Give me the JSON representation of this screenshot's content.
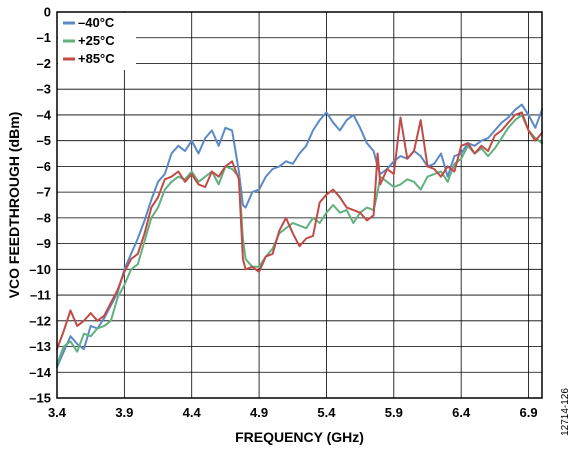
{
  "chart_data": {
    "type": "line",
    "xlabel": "FREQUENCY (GHz)",
    "ylabel": "VCO FEEDTHROUGH (dBm)",
    "xlim": [
      3.4,
      7.0
    ],
    "ylim": [
      -15,
      0
    ],
    "xticks": [
      3.4,
      3.9,
      4.4,
      4.9,
      5.4,
      5.9,
      6.4,
      6.9
    ],
    "xtick_labels": [
      "3.4",
      "3.9",
      "4.4",
      "4.9",
      "5.4",
      "5.9",
      "6.4",
      "6.9"
    ],
    "yticks": [
      0,
      -1,
      -2,
      -3,
      -4,
      -5,
      -6,
      -7,
      -8,
      -9,
      -10,
      -11,
      -12,
      -13,
      -14,
      -15
    ],
    "ytick_labels": [
      "0",
      "–1",
      "–2",
      "–3",
      "–4",
      "–5",
      "–6",
      "–7",
      "–8",
      "–9",
      "–10",
      "–11",
      "–12",
      "–13",
      "–14",
      "–15"
    ],
    "grid": true,
    "legend_position": "top-left",
    "series": [
      {
        "name": "–40°C",
        "color": "#5b8ac6",
        "x": [
          3.4,
          3.45,
          3.5,
          3.55,
          3.6,
          3.65,
          3.7,
          3.75,
          3.8,
          3.85,
          3.9,
          3.95,
          4.0,
          4.05,
          4.1,
          4.15,
          4.2,
          4.25,
          4.3,
          4.35,
          4.4,
          4.45,
          4.5,
          4.55,
          4.6,
          4.65,
          4.7,
          4.75,
          4.78,
          4.8,
          4.85,
          4.9,
          4.95,
          5.0,
          5.05,
          5.1,
          5.15,
          5.2,
          5.25,
          5.3,
          5.35,
          5.4,
          5.45,
          5.5,
          5.55,
          5.6,
          5.65,
          5.7,
          5.75,
          5.78,
          5.8,
          5.85,
          5.9,
          5.95,
          6.0,
          6.05,
          6.1,
          6.15,
          6.2,
          6.25,
          6.3,
          6.35,
          6.4,
          6.45,
          6.5,
          6.55,
          6.6,
          6.65,
          6.7,
          6.75,
          6.8,
          6.85,
          6.9,
          6.95,
          7.0
        ],
        "y": [
          -13.8,
          -13.2,
          -12.6,
          -12.9,
          -13.1,
          -12.2,
          -12.3,
          -11.9,
          -11.4,
          -10.9,
          -10.0,
          -9.4,
          -8.8,
          -8.1,
          -7.3,
          -6.6,
          -6.3,
          -5.5,
          -5.2,
          -5.4,
          -5.0,
          -5.5,
          -4.9,
          -4.6,
          -5.2,
          -4.5,
          -4.6,
          -6.2,
          -7.5,
          -7.6,
          -7.0,
          -6.9,
          -6.4,
          -6.1,
          -6.0,
          -5.8,
          -5.9,
          -5.5,
          -5.2,
          -4.6,
          -4.2,
          -3.9,
          -4.3,
          -4.6,
          -4.2,
          -4.0,
          -4.5,
          -5.1,
          -5.4,
          -6.0,
          -6.3,
          -6.1,
          -5.8,
          -5.6,
          -5.7,
          -5.4,
          -5.6,
          -6.0,
          -5.9,
          -5.5,
          -6.4,
          -5.6,
          -5.5,
          -5.1,
          -5.2,
          -5.0,
          -4.9,
          -4.6,
          -4.3,
          -4.1,
          -3.8,
          -3.6,
          -4.0,
          -4.5,
          -3.8
        ]
      },
      {
        "name": "+25°C",
        "color": "#61b07e",
        "x": [
          3.4,
          3.45,
          3.5,
          3.55,
          3.6,
          3.65,
          3.7,
          3.75,
          3.8,
          3.85,
          3.9,
          3.95,
          4.0,
          4.05,
          4.1,
          4.15,
          4.2,
          4.25,
          4.3,
          4.35,
          4.4,
          4.45,
          4.5,
          4.55,
          4.6,
          4.65,
          4.7,
          4.75,
          4.78,
          4.8,
          4.85,
          4.9,
          4.95,
          5.0,
          5.05,
          5.1,
          5.15,
          5.2,
          5.25,
          5.3,
          5.35,
          5.4,
          5.45,
          5.5,
          5.55,
          5.6,
          5.65,
          5.7,
          5.75,
          5.78,
          5.8,
          5.85,
          5.9,
          5.95,
          6.0,
          6.05,
          6.1,
          6.15,
          6.2,
          6.25,
          6.3,
          6.35,
          6.4,
          6.45,
          6.5,
          6.55,
          6.6,
          6.65,
          6.7,
          6.75,
          6.8,
          6.85,
          6.9,
          6.95,
          7.0
        ],
        "y": [
          -13.7,
          -13.0,
          -12.8,
          -13.2,
          -12.5,
          -12.6,
          -12.3,
          -12.2,
          -12.0,
          -11.1,
          -10.6,
          -10.0,
          -9.8,
          -8.9,
          -8.0,
          -7.6,
          -6.9,
          -6.6,
          -6.4,
          -6.5,
          -6.2,
          -6.6,
          -6.4,
          -6.2,
          -6.7,
          -6.0,
          -6.1,
          -6.4,
          -8.8,
          -9.6,
          -9.9,
          -9.9,
          -9.5,
          -9.2,
          -8.6,
          -8.4,
          -8.2,
          -8.3,
          -8.4,
          -8.0,
          -8.2,
          -7.8,
          -7.5,
          -7.8,
          -7.7,
          -8.2,
          -7.8,
          -7.6,
          -7.7,
          -7.0,
          -6.4,
          -6.6,
          -6.8,
          -6.7,
          -6.5,
          -6.6,
          -6.9,
          -6.4,
          -6.3,
          -6.2,
          -6.6,
          -5.9,
          -5.7,
          -5.2,
          -5.5,
          -5.3,
          -5.6,
          -5.3,
          -4.9,
          -4.5,
          -4.2,
          -4.0,
          -4.6,
          -4.9,
          -5.1
        ]
      },
      {
        "name": "+85°C",
        "color": "#c24a47",
        "x": [
          3.4,
          3.45,
          3.5,
          3.55,
          3.6,
          3.65,
          3.7,
          3.75,
          3.8,
          3.85,
          3.9,
          3.95,
          4.0,
          4.05,
          4.1,
          4.15,
          4.2,
          4.25,
          4.3,
          4.35,
          4.4,
          4.45,
          4.5,
          4.55,
          4.6,
          4.65,
          4.7,
          4.75,
          4.78,
          4.8,
          4.85,
          4.9,
          4.95,
          5.0,
          5.05,
          5.1,
          5.15,
          5.2,
          5.25,
          5.3,
          5.35,
          5.4,
          5.45,
          5.5,
          5.55,
          5.6,
          5.65,
          5.7,
          5.75,
          5.78,
          5.8,
          5.85,
          5.9,
          5.95,
          6.0,
          6.05,
          6.1,
          6.15,
          6.2,
          6.25,
          6.3,
          6.35,
          6.4,
          6.45,
          6.5,
          6.55,
          6.6,
          6.65,
          6.7,
          6.75,
          6.8,
          6.85,
          6.9,
          6.95,
          7.0
        ],
        "y": [
          -13.1,
          -12.4,
          -11.6,
          -12.2,
          -12.0,
          -11.7,
          -12.0,
          -11.8,
          -11.3,
          -10.8,
          -10.1,
          -9.6,
          -9.4,
          -8.6,
          -7.6,
          -7.2,
          -6.5,
          -6.4,
          -6.2,
          -6.6,
          -6.3,
          -6.7,
          -6.8,
          -6.2,
          -6.4,
          -6.0,
          -5.8,
          -6.5,
          -9.6,
          -10.0,
          -9.9,
          -10.1,
          -9.5,
          -9.4,
          -8.5,
          -8.0,
          -8.6,
          -9.1,
          -8.8,
          -8.7,
          -7.4,
          -7.1,
          -6.9,
          -7.2,
          -7.6,
          -7.7,
          -7.8,
          -8.1,
          -7.9,
          -5.5,
          -6.7,
          -6.1,
          -6.3,
          -4.1,
          -5.7,
          -5.4,
          -4.2,
          -6.0,
          -6.1,
          -6.4,
          -6.0,
          -6.2,
          -5.2,
          -5.1,
          -5.5,
          -5.2,
          -5.4,
          -4.8,
          -4.6,
          -4.3,
          -4.0,
          -3.9,
          -4.6,
          -5.0,
          -4.7
        ]
      }
    ]
  },
  "figure_id": "12714-126"
}
